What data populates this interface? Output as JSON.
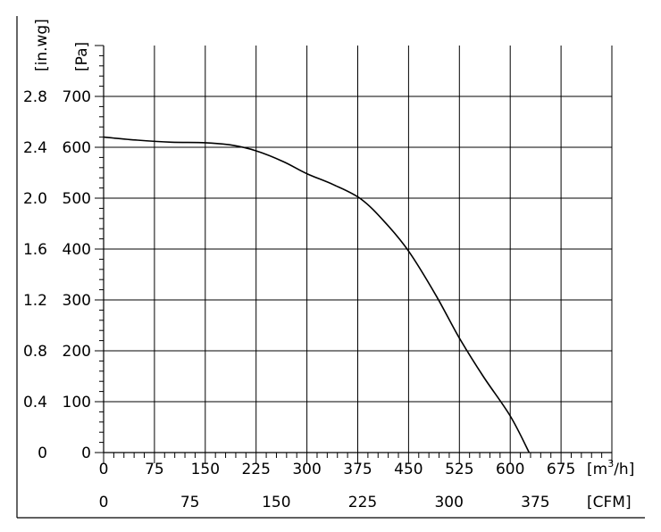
{
  "chart_data": {
    "type": "line",
    "title": "",
    "x_primary": {
      "unit_label": "[m³/h]",
      "unit_base": "[m",
      "unit_sup": "3",
      "unit_tail": "/h]",
      "range": [
        0,
        750
      ],
      "ticks": [
        "0",
        "75",
        "150",
        "225",
        "300",
        "375",
        "450",
        "525",
        "600",
        "675"
      ],
      "tick_values": [
        0,
        75,
        150,
        225,
        300,
        375,
        450,
        525,
        600,
        675
      ]
    },
    "x_secondary": {
      "unit_label": "[CFM]",
      "ticks": [
        "0",
        "75",
        "150",
        "225",
        "300",
        "375"
      ],
      "tick_values_cfm": [
        0,
        75,
        150,
        225,
        300,
        375
      ]
    },
    "y_primary": {
      "unit_label": "[Pa]",
      "range": [
        0,
        800
      ],
      "ticks": [
        "0",
        "100",
        "200",
        "300",
        "400",
        "500",
        "600",
        "700"
      ],
      "tick_values": [
        0,
        100,
        200,
        300,
        400,
        500,
        600,
        700
      ]
    },
    "y_secondary": {
      "unit_label": "[in.wg]",
      "ticks": [
        "0",
        "0.4",
        "0.8",
        "1.2",
        "1.6",
        "2.0",
        "2.4",
        "2.8"
      ]
    },
    "grid": true,
    "series": [
      {
        "x": [
          0,
          50,
          100,
          150,
          190,
          225,
          265,
          300,
          340,
          380,
          415,
          450,
          490,
          525,
          560,
          600,
          628
        ],
        "y": [
          620,
          614,
          610,
          609,
          604,
          593,
          572,
          548,
          526,
          498,
          453,
          396,
          310,
          225,
          150,
          72,
          0
        ]
      }
    ]
  }
}
